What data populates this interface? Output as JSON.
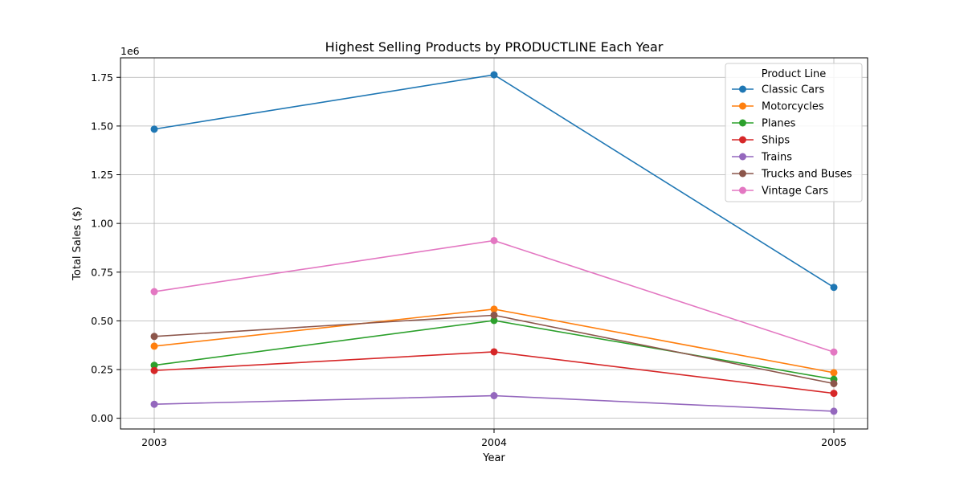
{
  "chart_data": {
    "type": "line",
    "title": "Highest Selling Products by PRODUCTLINE Each Year",
    "xlabel": "Year",
    "ylabel": "Total Sales ($)",
    "y_offset_label": "1e6",
    "x": [
      "2003",
      "2004",
      "2005"
    ],
    "y_ticks": [
      "0.00",
      "0.25",
      "0.50",
      "0.75",
      "1.00",
      "1.25",
      "1.50",
      "1.75"
    ],
    "ylim": [
      -0.055,
      1.85
    ],
    "grid": true,
    "legend_title": "Product Line",
    "legend_position": "top-right",
    "series": [
      {
        "name": "Classic Cars",
        "color": "#1f77b4",
        "values": [
          1.484,
          1.763,
          0.672
        ]
      },
      {
        "name": "Motorcycles",
        "color": "#ff7f0e",
        "values": [
          0.37,
          0.56,
          0.234
        ]
      },
      {
        "name": "Planes",
        "color": "#2ca02c",
        "values": [
          0.272,
          0.502,
          0.2
        ]
      },
      {
        "name": "Ships",
        "color": "#d62728",
        "values": [
          0.245,
          0.341,
          0.128
        ]
      },
      {
        "name": "Trains",
        "color": "#9467bd",
        "values": [
          0.072,
          0.116,
          0.036
        ]
      },
      {
        "name": "Trucks and Buses",
        "color": "#8c564b",
        "values": [
          0.42,
          0.529,
          0.178
        ]
      },
      {
        "name": "Vintage Cars",
        "color": "#e377c2",
        "values": [
          0.65,
          0.912,
          0.34
        ]
      }
    ]
  }
}
